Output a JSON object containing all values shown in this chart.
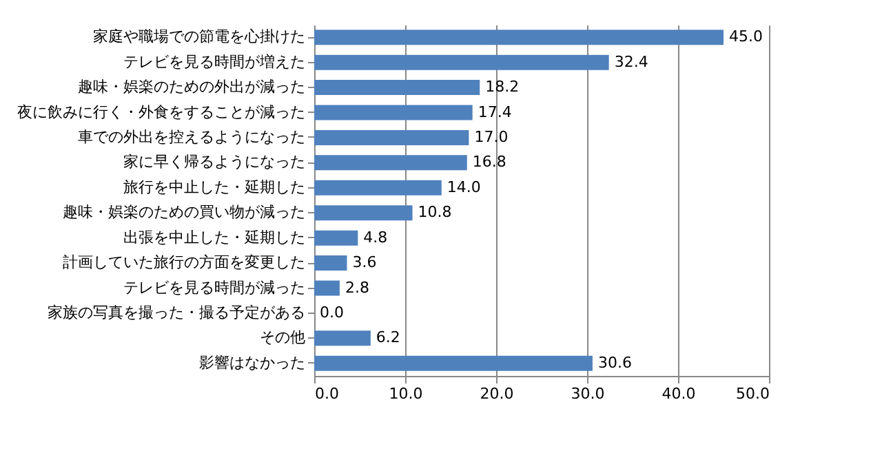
{
  "chart_data": {
    "type": "bar",
    "orientation": "horizontal",
    "categories": [
      "家庭や職場での節電を心掛けた",
      "テレビを見る時間が増えた",
      "趣味・娯楽のための外出が減った",
      "夜に飲みに行く・外食をすることが減った",
      "車での外出を控えるようになった",
      "家に早く帰るようになった",
      "旅行を中止した・延期した",
      "趣味・娯楽のための買い物が減った",
      "出張を中止した・延期した",
      "計画していた旅行の方面を変更した",
      "テレビを見る時間が減った",
      "家族の写真を撮った・撮る予定がある",
      "その他",
      "影響はなかった"
    ],
    "values": [
      45.0,
      32.4,
      18.2,
      17.4,
      17.0,
      16.8,
      14.0,
      10.8,
      4.8,
      3.6,
      2.8,
      0.0,
      6.2,
      30.6
    ],
    "value_labels": [
      "45.0",
      "32.4",
      "18.2",
      "17.4",
      "17.0",
      "16.8",
      "14.0",
      "10.8",
      "4.8",
      "3.6",
      "2.8",
      "0.0",
      "6.2",
      "30.6"
    ],
    "color": "#4f81bd",
    "xlim": [
      0,
      50
    ],
    "xticks": [
      {
        "value": 0,
        "label": "0.0"
      },
      {
        "value": 10,
        "label": "10.0"
      },
      {
        "value": 20,
        "label": "20.0"
      },
      {
        "value": 30,
        "label": "30.0"
      },
      {
        "value": 40,
        "label": "40.0"
      },
      {
        "value": 50,
        "label": "50.0"
      }
    ],
    "grid": "x"
  }
}
